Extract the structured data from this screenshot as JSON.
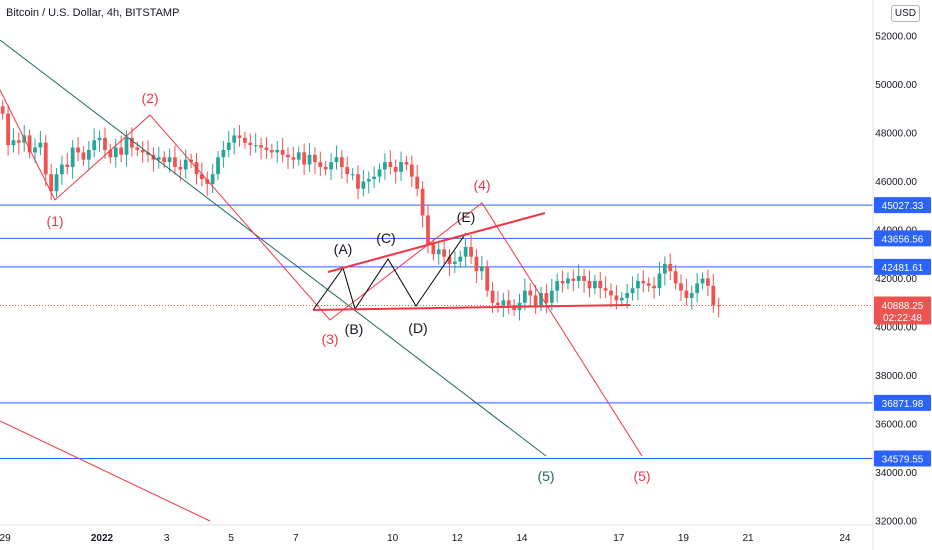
{
  "header": {
    "title": "Bitcoin / U.S. Dollar, 4h, BITSTAMP",
    "currency": "USD"
  },
  "chart_data": {
    "type": "candlestick",
    "symbol": "BTCUSD",
    "ylim": [
      31800,
      53200
    ],
    "y_ticks": [
      32000,
      34000,
      36000,
      38000,
      40000,
      42000,
      44000,
      46000,
      48000,
      50000,
      52000
    ],
    "y_tick_labels": [
      "32000.00",
      "34000.00",
      "36000.00",
      "38000.00",
      "40000.00",
      "42000.00",
      "44000.00",
      "46000.00",
      "48000.00",
      "50000.00",
      "52000.00"
    ],
    "x_ticks": [
      {
        "label": "29",
        "day": -3
      },
      {
        "label": "2022",
        "day": 0,
        "bold": true
      },
      {
        "label": "3",
        "day": 2
      },
      {
        "label": "5",
        "day": 4
      },
      {
        "label": "7",
        "day": 6
      },
      {
        "label": "10",
        "day": 9
      },
      {
        "label": "12",
        "day": 11
      },
      {
        "label": "14",
        "day": 13
      },
      {
        "label": "17",
        "day": 16
      },
      {
        "label": "19",
        "day": 18
      },
      {
        "label": "21",
        "day": 20
      },
      {
        "label": "24",
        "day": 23
      }
    ],
    "horizontal_levels": [
      {
        "label": "45027.33",
        "value": 45027.33
      },
      {
        "label": "43656.56",
        "value": 43656.56
      },
      {
        "label": "42481.61",
        "value": 42481.61
      },
      {
        "label": "36871.98",
        "value": 36871.98
      },
      {
        "label": "34579.55",
        "value": 34579.55
      }
    ],
    "last_price": {
      "label": "40888.25",
      "value": 40888.25,
      "countdown": "02:22:48"
    },
    "closes": [
      48800,
      47500,
      47700,
      47600,
      47900,
      47200,
      47400,
      47600,
      46300,
      45600,
      46300,
      46700,
      46600,
      47400,
      47200,
      46900,
      47300,
      47700,
      47800,
      47300,
      47000,
      47400,
      47100,
      47800,
      47400,
      47300,
      47200,
      47100,
      46900,
      47000,
      46800,
      47000,
      46600,
      46500,
      46900,
      46800,
      46300,
      46100,
      45900,
      46300,
      47000,
      47300,
      47600,
      47900,
      47800,
      47600,
      47500,
      47500,
      47400,
      47300,
      47200,
      47300,
      47100,
      47000,
      46900,
      47200,
      46700,
      47100,
      46800,
      46600,
      46500,
      46800,
      47000,
      46600,
      46300,
      46300,
      45700,
      46000,
      46100,
      46200,
      46500,
      46800,
      46600,
      46400,
      46800,
      46700,
      46200,
      45700,
      44600,
      43400,
      43000,
      43200,
      42900,
      42600,
      42700,
      42900,
      43300,
      42900,
      42300,
      42500,
      41500,
      41000,
      40900,
      41100,
      40900,
      40700,
      41000,
      41500,
      41300,
      40900,
      41400,
      41000,
      41500,
      41900,
      41800,
      42000,
      41900,
      42100,
      41900,
      41600,
      41900,
      41600,
      41500,
      41300,
      41100,
      41200,
      41400,
      41600,
      41900,
      41800,
      41700,
      41600,
      42200,
      42600,
      42300,
      41800,
      41500,
      41200,
      41400,
      41800,
      42000,
      41700,
      40900,
      40888
    ],
    "wave_labels": [
      {
        "text": "(1)",
        "color": "#f23645"
      },
      {
        "text": "(2)",
        "color": "#f23645"
      },
      {
        "text": "(3)",
        "color": "#f23645"
      },
      {
        "text": "(4)",
        "color": "#f23645"
      },
      {
        "text": "(5)",
        "color": "#f23645"
      },
      {
        "text": "(5)",
        "color": "#22695e"
      },
      {
        "text": "(A)",
        "color": "#131722"
      },
      {
        "text": "(B)",
        "color": "#131722"
      },
      {
        "text": "(C)",
        "color": "#131722"
      },
      {
        "text": "(D)",
        "color": "#131722"
      },
      {
        "text": "(E)",
        "color": "#131722"
      }
    ],
    "colors": {
      "up": "#26a69a",
      "down": "#ef5350",
      "level": "#2962ff",
      "trend_green": "#22695e",
      "wave_red": "#f23645",
      "last_price_bg": "#ef5350"
    }
  }
}
